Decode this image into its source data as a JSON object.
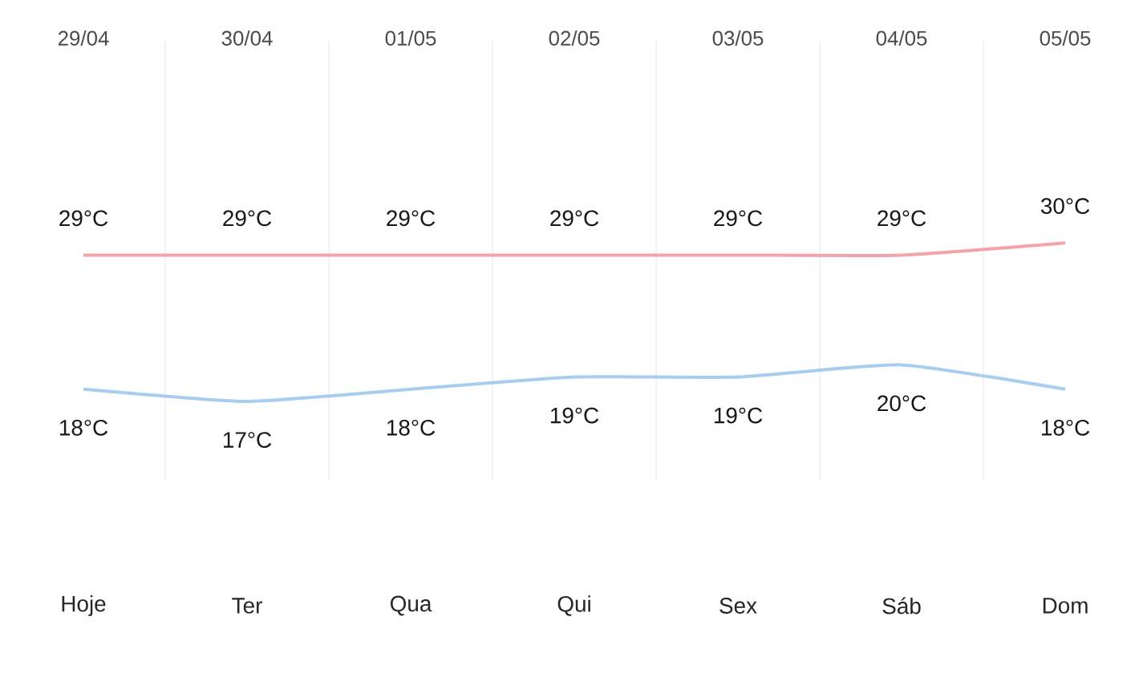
{
  "chart_data": {
    "type": "line",
    "categories": [
      "29/04",
      "30/04",
      "01/05",
      "02/05",
      "03/05",
      "04/05",
      "05/05"
    ],
    "series": [
      {
        "color": "#f4a3ab",
        "values": [
          29,
          29,
          29,
          29,
          29,
          29,
          30
        ],
        "value_labels": [
          "29°C",
          "29°C",
          "29°C",
          "29°C",
          "29°C",
          "29°C",
          "30°C"
        ]
      },
      {
        "color": "#a9cdf0",
        "values": [
          18,
          17,
          18,
          19,
          19,
          20,
          18
        ],
        "value_labels": [
          "18°C",
          "17°C",
          "18°C",
          "19°C",
          "19°C",
          "20°C",
          "18°C"
        ]
      }
    ],
    "ylim": [
      10.5,
      46.5
    ],
    "grid": "x",
    "marker": "none",
    "line_style": "solid",
    "tick_labels": "x",
    "annotations": [
      "Hoje",
      "Ter",
      "Qua",
      "Qui",
      "Sex",
      "Sáb",
      "Dom"
    ]
  }
}
